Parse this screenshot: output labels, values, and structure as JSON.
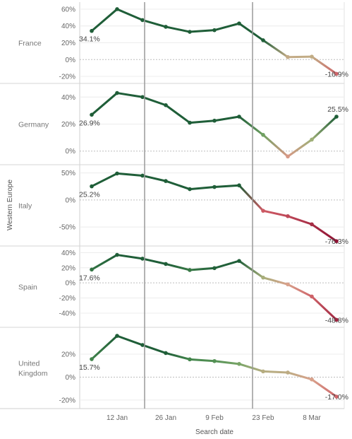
{
  "chart_data": {
    "type": "line",
    "group_label": "Western Europe",
    "xlabel": "Search date",
    "x_ticks": [
      "12 Jan",
      "26 Jan",
      "9 Feb",
      "23 Feb",
      "8 Mar"
    ],
    "x": [
      "5 Jan",
      "12 Jan",
      "19 Jan",
      "26 Jan",
      "2 Feb",
      "9 Feb",
      "16 Feb",
      "23 Feb",
      "1 Mar",
      "8 Mar",
      "15 Mar"
    ],
    "reference_lines_x": [
      "Between 19 Jan and 26 Jan",
      "Between 16 Feb and 23 Feb"
    ],
    "color_scale": {
      "positive": "#1f5e38",
      "neutral": "#d9a98f",
      "negative": "#8f1233"
    },
    "series": [
      {
        "name": "France",
        "label_lines": [
          "France"
        ],
        "values": [
          34.1,
          60,
          47,
          39,
          33,
          35,
          43,
          23,
          3,
          3.5,
          -16.9
        ],
        "first_label": "34.1%",
        "last_label": "-16.9%",
        "ylim": [
          -25,
          65
        ],
        "yticks": [
          {
            "v": 60,
            "t": "60%"
          },
          {
            "v": 40,
            "t": "40%"
          },
          {
            "v": 20,
            "t": "20%"
          },
          {
            "v": 0,
            "t": "0%"
          },
          {
            "v": -20,
            "t": "-20%"
          }
        ]
      },
      {
        "name": "Germany",
        "label_lines": [
          "Germany"
        ],
        "values": [
          26.9,
          43,
          40,
          34,
          21,
          22.5,
          25.5,
          12,
          -4,
          8.5,
          25.5
        ],
        "first_label": "26.9%",
        "last_label": "25.5%",
        "ylim": [
          -8,
          48
        ],
        "yticks": [
          {
            "v": 40,
            "t": "40%"
          },
          {
            "v": 20,
            "t": "20%"
          },
          {
            "v": 0,
            "t": "0%"
          }
        ]
      },
      {
        "name": "Italy",
        "label_lines": [
          "Italy"
        ],
        "values": [
          25.2,
          49,
          45,
          35,
          20,
          24,
          27,
          -20,
          -30,
          -45,
          -76.3
        ],
        "first_label": "25.2%",
        "last_label": "-76.3%",
        "ylim": [
          -80,
          60
        ],
        "yticks": [
          {
            "v": 50,
            "t": "50%"
          },
          {
            "v": 0,
            "t": "0%"
          },
          {
            "v": -50,
            "t": "-50%"
          }
        ]
      },
      {
        "name": "Spain",
        "label_lines": [
          "Spain"
        ],
        "values": [
          17.6,
          37,
          32,
          25,
          17,
          19.5,
          29,
          7,
          -2,
          -18,
          -48.8
        ],
        "first_label": "17.6%",
        "last_label": "-48.8%",
        "ylim": [
          -55,
          45
        ],
        "yticks": [
          {
            "v": 40,
            "t": "40%"
          },
          {
            "v": 20,
            "t": "20%"
          },
          {
            "v": 0,
            "t": "0%"
          },
          {
            "v": -20,
            "t": "-20%"
          },
          {
            "v": -40,
            "t": "-40%"
          }
        ]
      },
      {
        "name": "United Kingdom",
        "label_lines": [
          "United",
          "Kingdom"
        ],
        "values": [
          15.7,
          36,
          28,
          21,
          15.5,
          14,
          11.5,
          5,
          4,
          -2,
          -17
        ],
        "first_label": "15.7%",
        "last_label": "-17.0%",
        "ylim": [
          -25,
          41
        ],
        "yticks": [
          {
            "v": 20,
            "t": "20%"
          },
          {
            "v": 0,
            "t": "0%"
          },
          {
            "v": -20,
            "t": "-20%"
          }
        ]
      }
    ]
  }
}
